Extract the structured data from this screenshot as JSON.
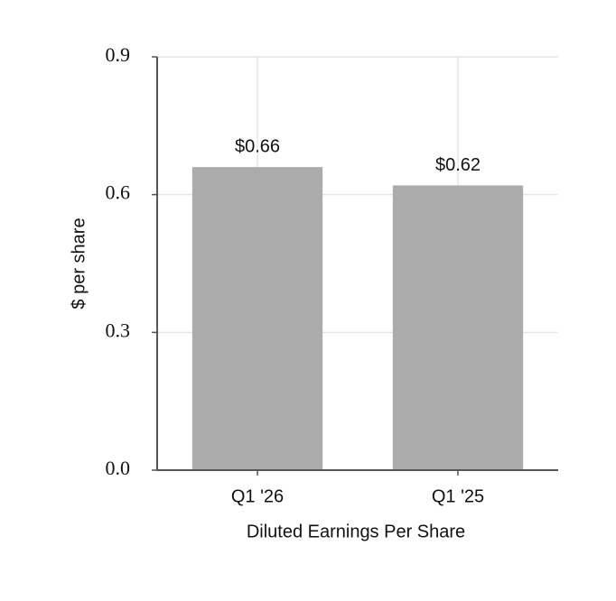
{
  "chart_data": {
    "type": "bar",
    "categories": [
      "Q1 '26",
      "Q1 '25"
    ],
    "values": [
      0.66,
      0.62
    ],
    "value_labels": [
      "$0.66",
      "$0.62"
    ],
    "color": "#ababab",
    "x_label": "Diluted Earnings Per Share",
    "y_label": "$ per share",
    "ylim": [
      0,
      0.9
    ],
    "yticks": [
      {
        "value": 0,
        "label": "0.0"
      },
      0.3,
      0.6,
      0.9
    ],
    "grid": true
  }
}
